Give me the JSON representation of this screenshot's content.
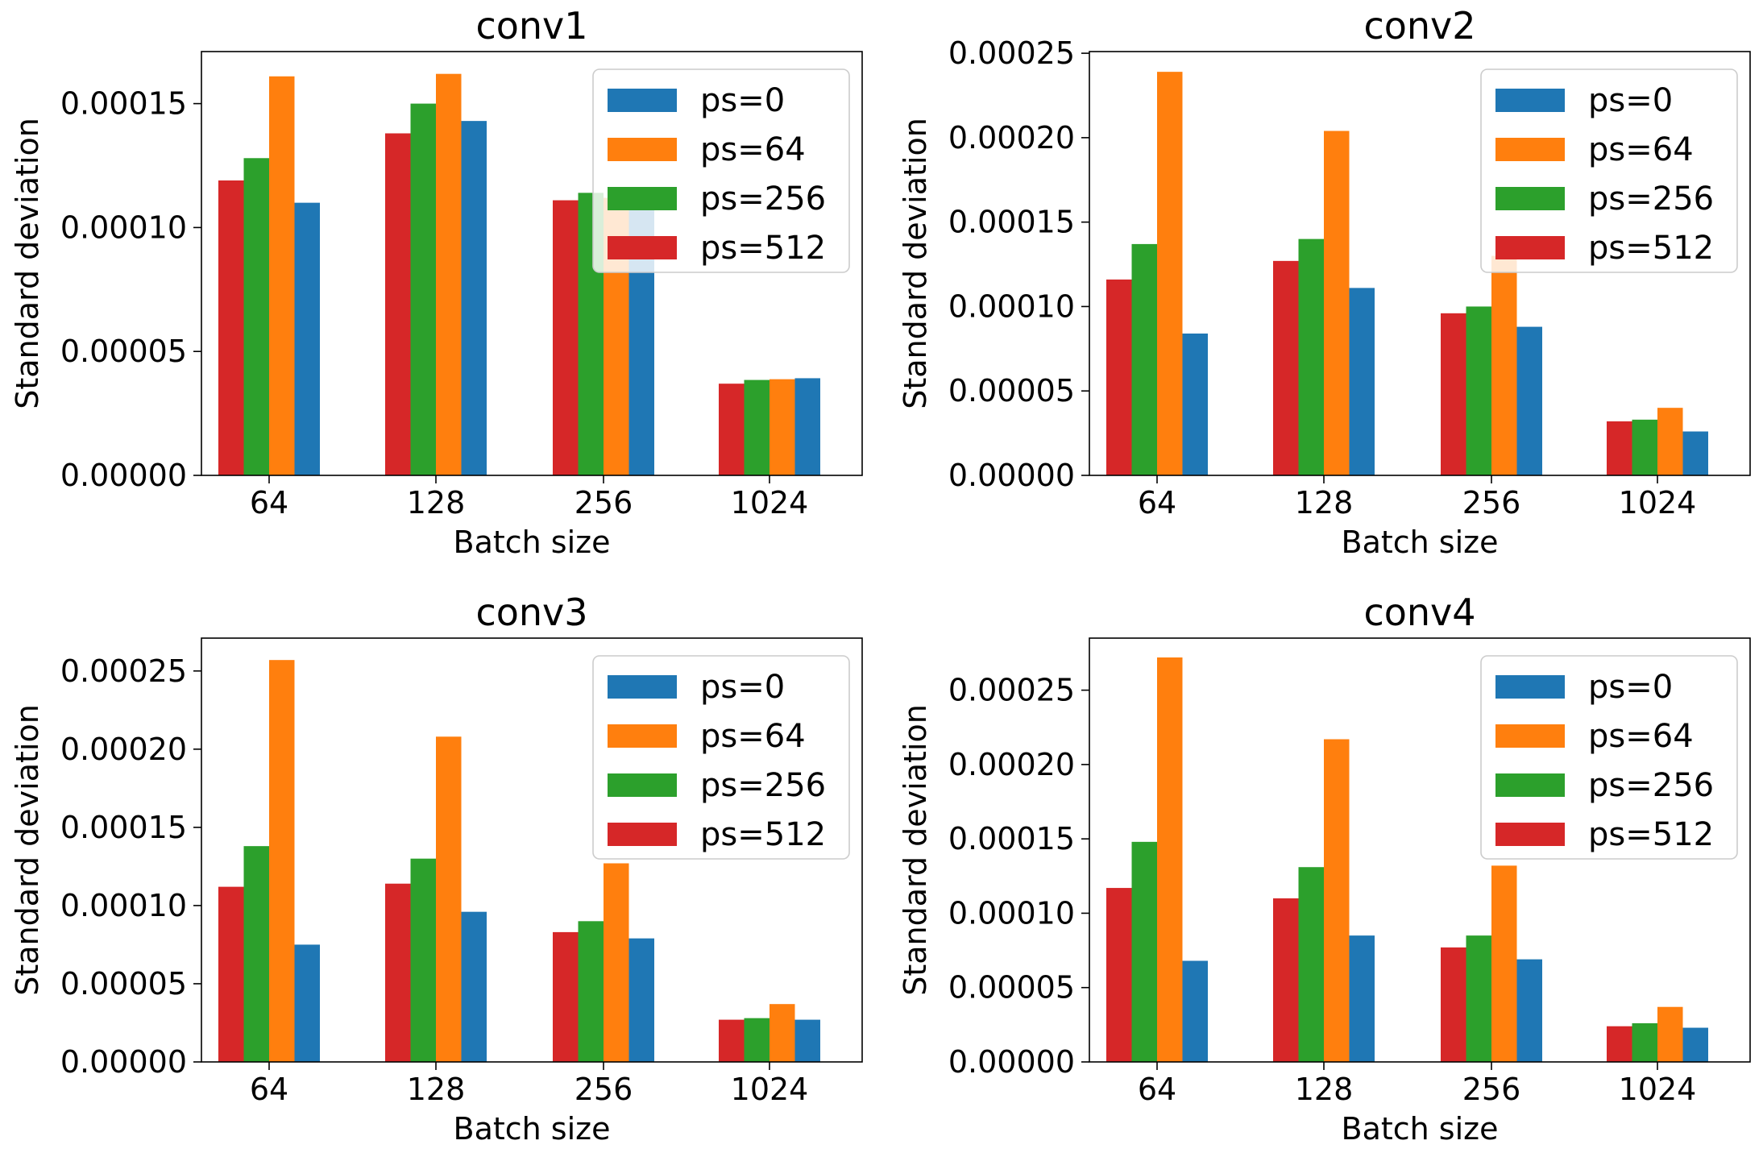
{
  "colors": {
    "ps=0": "#1f77b4",
    "ps=64": "#ff7f0e",
    "ps=256": "#2ca02c",
    "ps=512": "#d62728"
  },
  "chart_data": [
    {
      "type": "bar",
      "title": "conv1",
      "xlabel": "Batch size",
      "ylabel": "Standard deviation",
      "categories": [
        "64",
        "128",
        "256",
        "1024"
      ],
      "ylim": [
        0,
        0.000171
      ],
      "yticks": [
        0.0,
        5e-05,
        0.0001,
        0.00015
      ],
      "ytick_labels": [
        "0.00000",
        "0.00005",
        "0.00010",
        "0.00015"
      ],
      "legend": "top-right",
      "series": [
        {
          "name": "ps=512",
          "values": [
            0.000119,
            0.000138,
            0.000111,
            3.7e-05
          ]
        },
        {
          "name": "ps=256",
          "values": [
            0.000128,
            0.00015,
            0.000114,
            3.85e-05
          ]
        },
        {
          "name": "ps=64",
          "values": [
            0.000161,
            0.000162,
            0.000112,
            3.88e-05
          ]
        },
        {
          "name": "ps=0",
          "values": [
            0.00011,
            0.000143,
            0.00011,
            3.92e-05
          ]
        }
      ]
    },
    {
      "type": "bar",
      "title": "conv2",
      "xlabel": "Batch size",
      "ylabel": "Standard deviation",
      "categories": [
        "64",
        "128",
        "256",
        "1024"
      ],
      "ylim": [
        0,
        0.000251
      ],
      "yticks": [
        0.0,
        5e-05,
        0.0001,
        0.00015,
        0.0002,
        0.00025
      ],
      "ytick_labels": [
        "0.00000",
        "0.00005",
        "0.00010",
        "0.00015",
        "0.00020",
        "0.00025"
      ],
      "legend": "top-right",
      "series": [
        {
          "name": "ps=512",
          "values": [
            0.000116,
            0.000127,
            9.6e-05,
            3.2e-05
          ]
        },
        {
          "name": "ps=256",
          "values": [
            0.000137,
            0.00014,
            0.0001,
            3.3e-05
          ]
        },
        {
          "name": "ps=64",
          "values": [
            0.000239,
            0.000204,
            0.00013,
            4e-05
          ]
        },
        {
          "name": "ps=0",
          "values": [
            8.4e-05,
            0.000111,
            8.8e-05,
            2.6e-05
          ]
        }
      ]
    },
    {
      "type": "bar",
      "title": "conv3",
      "xlabel": "Batch size",
      "ylabel": "Standard deviation",
      "categories": [
        "64",
        "128",
        "256",
        "1024"
      ],
      "ylim": [
        0,
        0.000271
      ],
      "yticks": [
        0.0,
        5e-05,
        0.0001,
        0.00015,
        0.0002,
        0.00025
      ],
      "ytick_labels": [
        "0.00000",
        "0.00005",
        "0.00010",
        "0.00015",
        "0.00020",
        "0.00025"
      ],
      "legend": "top-right",
      "series": [
        {
          "name": "ps=512",
          "values": [
            0.000112,
            0.000114,
            8.3e-05,
            2.7e-05
          ]
        },
        {
          "name": "ps=256",
          "values": [
            0.000138,
            0.00013,
            9e-05,
            2.8e-05
          ]
        },
        {
          "name": "ps=64",
          "values": [
            0.000257,
            0.000208,
            0.000127,
            3.7e-05
          ]
        },
        {
          "name": "ps=0",
          "values": [
            7.5e-05,
            9.6e-05,
            7.9e-05,
            2.7e-05
          ]
        }
      ]
    },
    {
      "type": "bar",
      "title": "conv4",
      "xlabel": "Batch size",
      "ylabel": "Standard deviation",
      "categories": [
        "64",
        "128",
        "256",
        "1024"
      ],
      "ylim": [
        0,
        0.000285
      ],
      "yticks": [
        0.0,
        5e-05,
        0.0001,
        0.00015,
        0.0002,
        0.00025
      ],
      "ytick_labels": [
        "0.00000",
        "0.00005",
        "0.00010",
        "0.00015",
        "0.00020",
        "0.00025"
      ],
      "legend": "top-right",
      "series": [
        {
          "name": "ps=512",
          "values": [
            0.000117,
            0.00011,
            7.7e-05,
            2.4e-05
          ]
        },
        {
          "name": "ps=256",
          "values": [
            0.000148,
            0.000131,
            8.5e-05,
            2.6e-05
          ]
        },
        {
          "name": "ps=64",
          "values": [
            0.000272,
            0.000217,
            0.000132,
            3.7e-05
          ]
        },
        {
          "name": "ps=0",
          "values": [
            6.8e-05,
            8.5e-05,
            6.9e-05,
            2.3e-05
          ]
        }
      ]
    }
  ],
  "legend_order": [
    "ps=0",
    "ps=64",
    "ps=256",
    "ps=512"
  ]
}
